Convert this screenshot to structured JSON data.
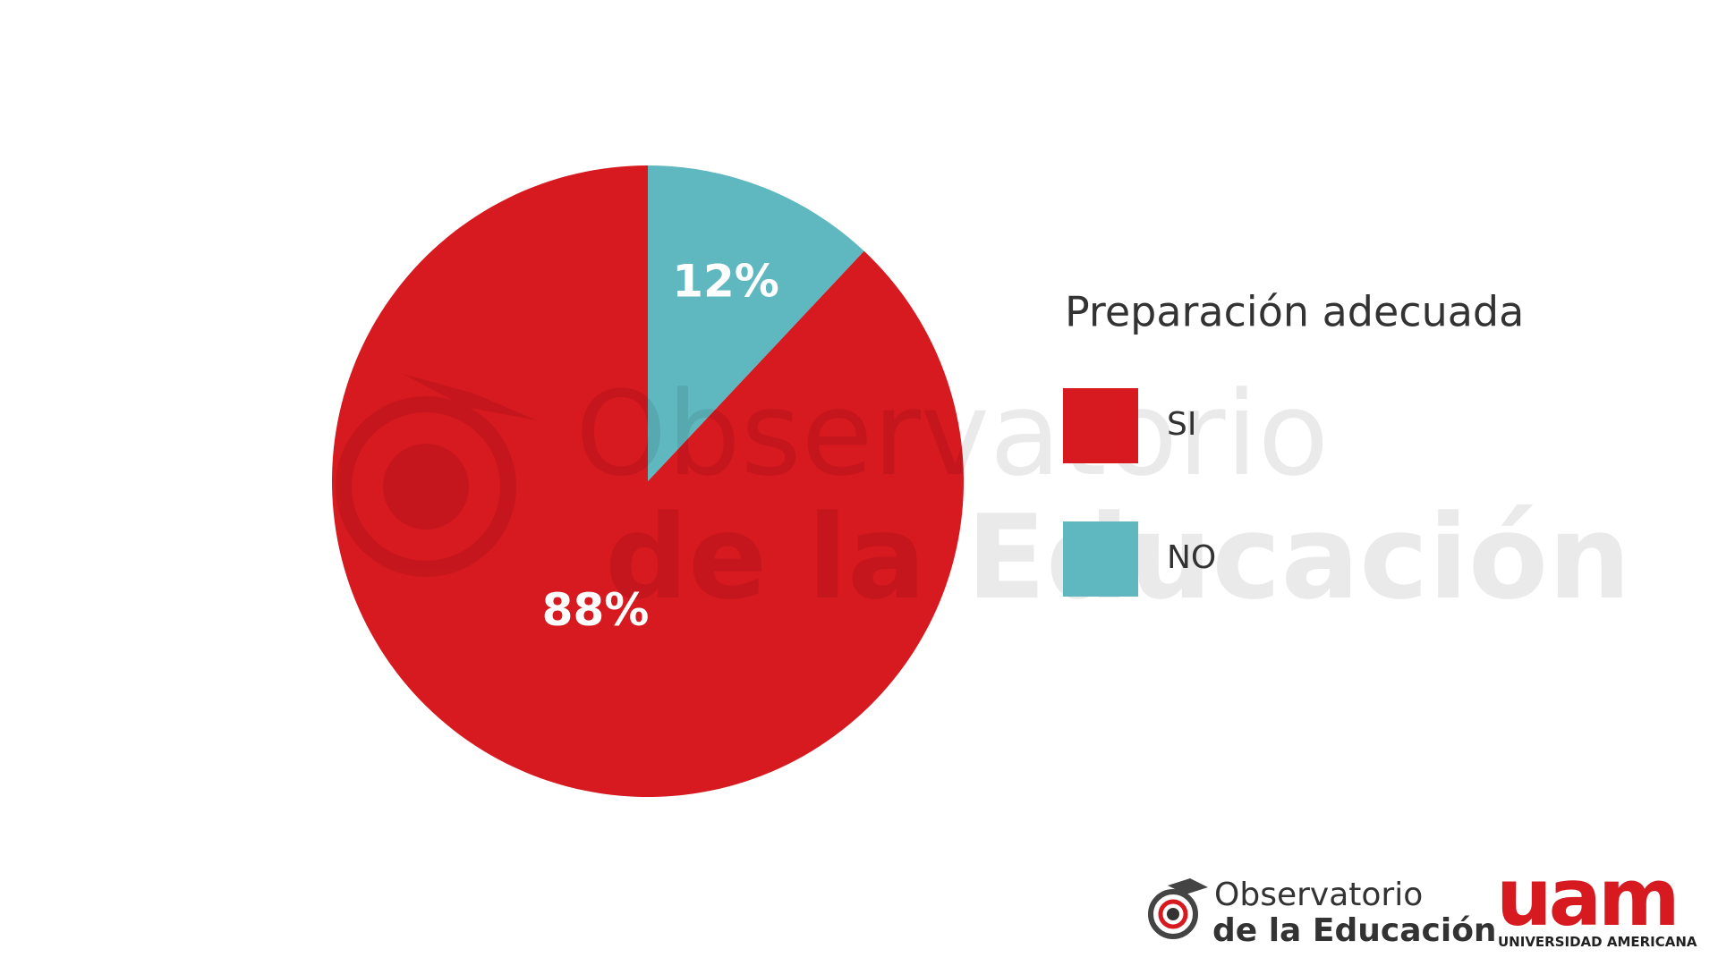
{
  "chart_data": {
    "type": "pie",
    "legend_title": "Preparación adecuada",
    "categories": [
      "SI",
      "NO"
    ],
    "values": [
      88,
      12
    ],
    "value_labels": [
      "88%",
      "12%"
    ],
    "colors": [
      "#d71920",
      "#5fb8bf"
    ]
  },
  "branding": {
    "observatorio_line1": "Observatorio",
    "observatorio_line2": "de la Educación",
    "uam": "uam",
    "uam_sub": "UNIVERSIDAD AMERICANA"
  }
}
